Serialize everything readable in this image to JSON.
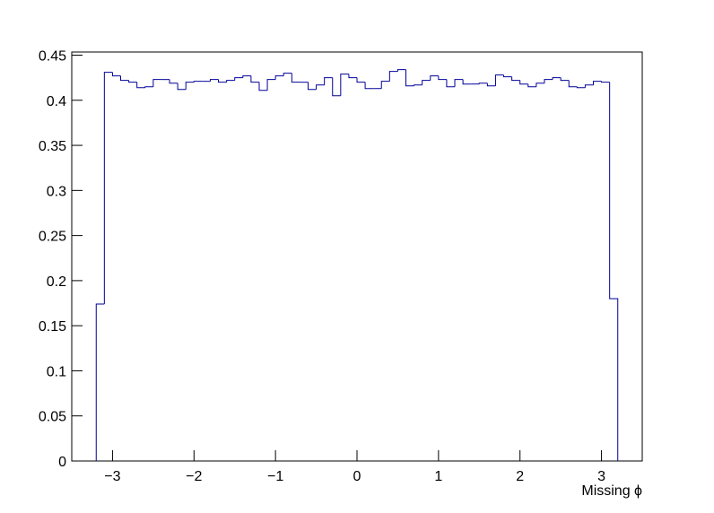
{
  "chart_data": {
    "type": "histogram",
    "x_label": "Missing ϕ",
    "color": "#000099",
    "bins": [
      -3.2,
      -3.1,
      -3.0,
      -2.9,
      -2.8,
      -2.7,
      -2.6,
      -2.5,
      -2.4,
      -2.3,
      -2.2,
      -2.1,
      -2.0,
      -1.9,
      -1.8,
      -1.7,
      -1.6,
      -1.5,
      -1.4,
      -1.3,
      -1.2,
      -1.1,
      -1.0,
      -0.9,
      -0.8,
      -0.7,
      -0.6,
      -0.5,
      -0.4,
      -0.3,
      -0.2,
      -0.1,
      0,
      0.1,
      0.2,
      0.3,
      0.4,
      0.5,
      0.6,
      0.7,
      0.8,
      0.9,
      1.0,
      1.1,
      1.2,
      1.3,
      1.4,
      1.5,
      1.6,
      1.7,
      1.8,
      1.9,
      2.0,
      2.1,
      2.2,
      2.3,
      2.4,
      2.5,
      2.6,
      2.7,
      2.8,
      2.9,
      3.0,
      3.1,
      3.2
    ],
    "values": [
      0.174,
      0.431,
      0.427,
      0.422,
      0.42,
      0.414,
      0.415,
      0.423,
      0.423,
      0.419,
      0.412,
      0.42,
      0.421,
      0.421,
      0.423,
      0.42,
      0.422,
      0.425,
      0.427,
      0.42,
      0.411,
      0.423,
      0.427,
      0.43,
      0.42,
      0.42,
      0.412,
      0.417,
      0.425,
      0.405,
      0.429,
      0.425,
      0.42,
      0.413,
      0.413,
      0.421,
      0.432,
      0.434,
      0.416,
      0.417,
      0.422,
      0.427,
      0.423,
      0.415,
      0.423,
      0.418,
      0.418,
      0.419,
      0.416,
      0.428,
      0.426,
      0.422,
      0.418,
      0.415,
      0.419,
      0.423,
      0.425,
      0.422,
      0.415,
      0.414,
      0.417,
      0.421,
      0.42,
      0.18
    ],
    "xlim": [
      -3.5,
      3.5
    ],
    "xticks": [
      {
        "value": -3,
        "label": "−3"
      },
      {
        "value": -2,
        "label": "−2"
      },
      {
        "value": -1,
        "label": "−1"
      },
      0,
      1,
      2,
      3
    ],
    "ylim": [
      0,
      0.4535
    ],
    "yticks": [
      0,
      0.05,
      0.1,
      0.15,
      0.2,
      0.25,
      0.3,
      0.35,
      0.4,
      0.45
    ]
  }
}
